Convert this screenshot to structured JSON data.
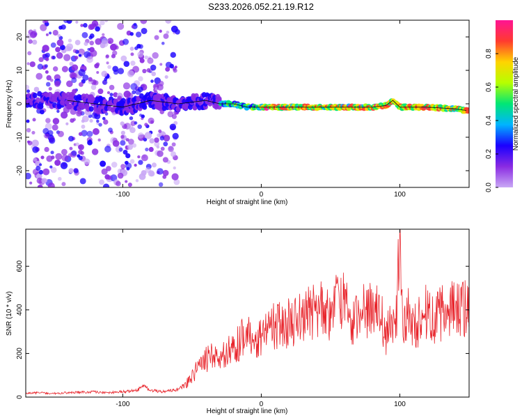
{
  "figure_title": "S233.2026.052.21.19.R12",
  "colors": {
    "snr_line": "#e8242b",
    "frame": "#000000",
    "colormap": [
      "#ffffff",
      "#c9a8f5",
      "#8a2be2",
      "#1a00ff",
      "#00b4ff",
      "#00e676",
      "#b6ff00",
      "#ffd400",
      "#ff3b2f",
      "#ff1493"
    ]
  },
  "chart_data": [
    {
      "type": "heatmap",
      "title": "",
      "xlabel": "Height of straight line (km)",
      "ylabel": "Frequency (Hz)",
      "xlim": [
        -170,
        150
      ],
      "ylim": [
        -25,
        25
      ],
      "xticks": [
        -100,
        0,
        100
      ],
      "xtick_labels": [
        "-100",
        "0",
        "100"
      ],
      "yticks": [
        -20,
        -10,
        0,
        10,
        20
      ],
      "ytick_labels": [
        "-20",
        "-10",
        "0",
        "10",
        "20"
      ],
      "ridge": {
        "x": [
          -140,
          -120,
          -100,
          -80,
          -60,
          -40,
          -30,
          -20,
          -10,
          0,
          20,
          40,
          60,
          80,
          90,
          95,
          100,
          120,
          140,
          148
        ],
        "frequency": [
          1,
          0,
          -1,
          1,
          0,
          1,
          0,
          0,
          -1,
          -1,
          -1,
          -1,
          -1,
          -1,
          -0.5,
          1,
          -1,
          -1,
          -1.5,
          -2
        ]
      },
      "colorbar": {
        "label": "Normalized spectral amplitude",
        "range": [
          0,
          1
        ],
        "ticks": [
          0.0,
          0.2,
          0.4,
          0.6,
          0.8
        ],
        "tick_labels": [
          "0.0",
          "0.2",
          "0.4",
          "0.6",
          "0.8"
        ]
      },
      "grid": false
    },
    {
      "type": "line",
      "title": "",
      "xlabel": "Height of straight line (km)",
      "ylabel": "SNR (10 * v/v)",
      "xlim": [
        -170,
        150
      ],
      "ylim": [
        0,
        770
      ],
      "xticks": [
        -100,
        0,
        100
      ],
      "xtick_labels": [
        "-100",
        "0",
        "100"
      ],
      "yticks": [
        0,
        200,
        400,
        600
      ],
      "ytick_labels": [
        "0",
        "200",
        "400",
        "600"
      ],
      "series": [
        {
          "name": "SNR",
          "x": [
            -170,
            -160,
            -150,
            -140,
            -130,
            -120,
            -110,
            -100,
            -90,
            -85,
            -80,
            -70,
            -60,
            -55,
            -50,
            -45,
            -40,
            -35,
            -30,
            -25,
            -20,
            -15,
            -10,
            -5,
            0,
            5,
            10,
            15,
            20,
            25,
            30,
            35,
            40,
            45,
            50,
            55,
            57,
            60,
            65,
            70,
            75,
            80,
            85,
            90,
            95,
            98,
            100,
            102,
            105,
            110,
            115,
            120,
            125,
            130,
            135,
            140,
            145,
            150
          ],
          "values": [
            18,
            20,
            17,
            20,
            22,
            24,
            20,
            25,
            30,
            50,
            30,
            25,
            35,
            55,
            90,
            150,
            170,
            190,
            180,
            200,
            230,
            260,
            290,
            260,
            270,
            300,
            330,
            320,
            340,
            360,
            370,
            390,
            395,
            400,
            380,
            430,
            500,
            420,
            330,
            370,
            420,
            380,
            400,
            280,
            350,
            420,
            770,
            300,
            380,
            340,
            350,
            400,
            360,
            380,
            400,
            390,
            410,
            420
          ]
        }
      ],
      "grid": false
    }
  ]
}
